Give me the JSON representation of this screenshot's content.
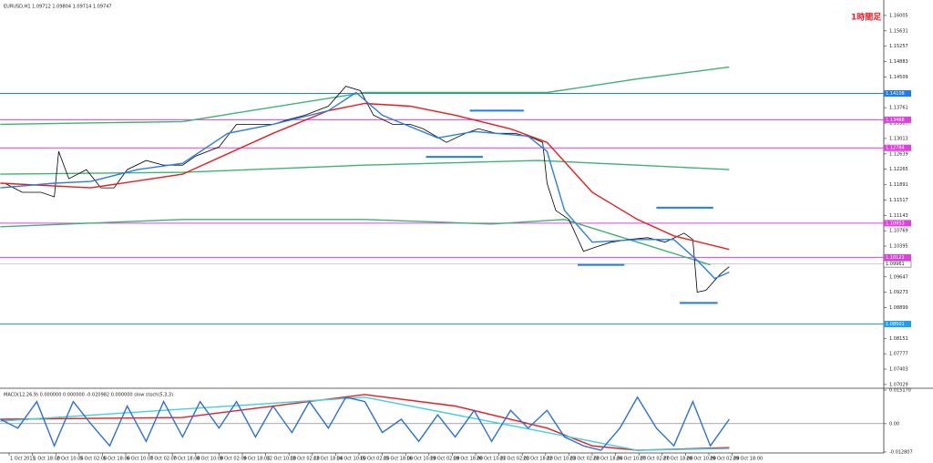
{
  "chart_data": [
    {
      "type": "line",
      "title": "EURUSD,H1 1.09712 1.09804 1.09714 1.09747",
      "annotation": "1時間足",
      "xlim": [
        -6.25,
        600
      ],
      "ylim": [
        1.0696,
        1.16336
      ],
      "yticks": [
        1.16005,
        1.15631,
        1.15257,
        1.14883,
        1.14509,
        1.14135,
        1.13761,
        1.13387,
        1.13013,
        1.12639,
        1.12265,
        1.11891,
        1.11517,
        1.11143,
        1.10769,
        1.10395,
        1.10021,
        1.09647,
        1.09273,
        1.08899,
        1.08525,
        1.08151,
        1.07777,
        1.07403,
        1.07029
      ],
      "levels": [
        {
          "value": 1.14108,
          "color": "#1e7bf0"
        },
        {
          "value": 1.13468,
          "color": "#e040e0"
        },
        {
          "value": 1.12784,
          "color": "#e040e0"
        },
        {
          "value": 1.10953,
          "color": "#e040e0"
        },
        {
          "value": 1.10121,
          "color": "#e040e0"
        },
        {
          "value": 1.08501,
          "color": "#1ea0f0"
        }
      ],
      "last_price": 1.09961,
      "segments": [
        {
          "x": [
            316,
            353
          ],
          "value": 1.13689,
          "color": "#1e7bf0"
        },
        {
          "x": [
            286,
            325
          ],
          "value": 1.12564,
          "color": "#1e7bf0"
        },
        {
          "x": [
            444,
            483
          ],
          "value": 1.11328,
          "color": "#1e7bf0"
        },
        {
          "x": [
            390,
            422
          ],
          "value": 1.09939,
          "color": "#1e7bf0"
        },
        {
          "x": [
            460,
            486
          ],
          "value": 1.09012,
          "color": "#1e7bf0"
        }
      ],
      "series": [
        {
          "color": "#3cb371",
          "x": [
            -6,
            119,
            244,
            369,
            431,
            494
          ],
          "values": [
            1.13358,
            1.13424,
            1.1413,
            1.1413,
            1.14461,
            1.14748
          ]
        },
        {
          "color": "#3cb371",
          "x": [
            -6,
            119,
            244,
            363,
            431,
            494
          ],
          "values": [
            1.12145,
            1.12189,
            1.12365,
            1.12476,
            1.12365,
            1.12255
          ]
        },
        {
          "color": "#3cb371",
          "x": [
            -6,
            119,
            244,
            331,
            381,
            431,
            481
          ],
          "values": [
            1.10865,
            1.11042,
            1.11042,
            1.10931,
            1.11042,
            1.1049,
            1.09938
          ]
        },
        {
          "color": "#000000",
          "x": [
            -3,
            9,
            22,
            31,
            34,
            41,
            53,
            63,
            72,
            81,
            94,
            106,
            119,
            128,
            144,
            156,
            169,
            181,
            191,
            203,
            219,
            231,
            241,
            250,
            263,
            275,
            284,
            300,
            313,
            322,
            334,
            347,
            359,
            366,
            369,
            375,
            384,
            394,
            403,
            413,
            425,
            438,
            450,
            463,
            469,
            472,
            478,
            488,
            494
          ],
          "values": [
            1.11924,
            1.11703,
            1.11703,
            1.11593,
            1.12696,
            1.12034,
            1.12255,
            1.11813,
            1.11813,
            1.12255,
            1.12476,
            1.12365,
            1.12365,
            1.12586,
            1.12806,
            1.13358,
            1.13358,
            1.13358,
            1.13468,
            1.13578,
            1.13799,
            1.14284,
            1.14174,
            1.13578,
            1.13358,
            1.13358,
            1.13248,
            1.12917,
            1.13137,
            1.13248,
            1.13137,
            1.13137,
            1.13027,
            1.12917,
            1.11924,
            1.11262,
            1.11042,
            1.10269,
            1.1038,
            1.1049,
            1.10556,
            1.106,
            1.1049,
            1.10711,
            1.10556,
            1.09277,
            1.09321,
            1.09718,
            1.09894
          ]
        },
        {
          "color": "#e81c1c",
          "x": [
            -6,
            56,
            119,
            181,
            219,
            244,
            275,
            306,
            344,
            369,
            400,
            431,
            456,
            494
          ],
          "values": [
            1.11924,
            1.11813,
            1.12145,
            1.13137,
            1.13689,
            1.13865,
            1.13799,
            1.13578,
            1.13247,
            1.12917,
            1.11703,
            1.11042,
            1.10645,
            1.10314
          ]
        },
        {
          "color": "#2a7de1",
          "x": [
            -6,
            31,
            56,
            88,
            119,
            150,
            181,
            219,
            238,
            256,
            294,
            319,
            356,
            369,
            381,
            400,
            431,
            456,
            472,
            484,
            494
          ],
          "values": [
            1.11813,
            1.11924,
            1.11968,
            1.12255,
            1.12409,
            1.13137,
            1.13358,
            1.13689,
            1.1413,
            1.13578,
            1.13027,
            1.13181,
            1.13071,
            1.12696,
            1.11262,
            1.1049,
            1.10556,
            1.10556,
            1.10049,
            1.09608,
            1.09762
          ]
        }
      ]
    },
    {
      "type": "line",
      "title": "MACD(12,26,9) 0.000000 0.000000 -0.020982 0.000000 slow stoch(5,3,3)",
      "xlim": [
        -6.25,
        600
      ],
      "ylim": [
        -0.01283,
        0.01517
      ],
      "yticks": [
        {
          "value": 0.01517,
          "label": "0.015170"
        },
        {
          "value": 0,
          "label": "0.00"
        },
        {
          "value": -0.012807,
          "label": "-0.012807"
        }
      ],
      "xticks": [
        {
          "value": 0,
          "label": "1 Oct 2015"
        },
        {
          "value": 16,
          "label": "1 Oct 18:00"
        },
        {
          "value": 32,
          "label": "2 Oct 10:00"
        },
        {
          "value": 48,
          "label": "5 Oct 02:00"
        },
        {
          "value": 64,
          "label": "5 Oct 18:00"
        },
        {
          "value": 80,
          "label": "6 Oct 10:00"
        },
        {
          "value": 96,
          "label": "7 Oct 02:00"
        },
        {
          "value": 112,
          "label": "7 Oct 18:00"
        },
        {
          "value": 128,
          "label": "8 Oct 10:00"
        },
        {
          "value": 144,
          "label": "9 Oct 02:00"
        },
        {
          "value": 160,
          "label": "9 Oct 18:00"
        },
        {
          "value": 176,
          "label": "12 Oct 10:00"
        },
        {
          "value": 192,
          "label": "13 Oct 02:00"
        },
        {
          "value": 208,
          "label": "13 Oct 18:00"
        },
        {
          "value": 224,
          "label": "14 Oct 10:00"
        },
        {
          "value": 240,
          "label": "15 Oct 02:00"
        },
        {
          "value": 256,
          "label": "15 Oct 18:00"
        },
        {
          "value": 272,
          "label": "16 Oct 10:00"
        },
        {
          "value": 288,
          "label": "19 Oct 02:00"
        },
        {
          "value": 304,
          "label": "19 Oct 18:00"
        },
        {
          "value": 320,
          "label": "20 Oct 10:00"
        },
        {
          "value": 336,
          "label": "21 Oct 02:00"
        },
        {
          "value": 352,
          "label": "21 Oct 18:00"
        },
        {
          "value": 368,
          "label": "22 Oct 10:00"
        },
        {
          "value": 384,
          "label": "23 Oct 02:00"
        },
        {
          "value": 400,
          "label": "23 Oct 18:00"
        },
        {
          "value": 416,
          "label": "26 Oct 10:00"
        },
        {
          "value": 432,
          "label": "27 Oct 02:00"
        },
        {
          "value": 448,
          "label": "27 Oct 18:00"
        },
        {
          "value": 464,
          "label": "28 Oct 10:00"
        },
        {
          "value": 480,
          "label": "29 Oct 02:00"
        },
        {
          "value": 496,
          "label": "29 Oct 18:00"
        }
      ],
      "series": [
        {
          "color": "#e81c1c",
          "x": [
            -6,
            119,
            244,
            306,
            369,
            400,
            431,
            494
          ],
          "values": [
            0.00198,
            0.00278,
            0.01317,
            0.00798,
            -0.00202,
            -0.01001,
            -0.01201,
            -0.01081
          ]
        },
        {
          "color": "#40d0e0",
          "x": [
            -6,
            244,
            369,
            431,
            494
          ],
          "values": [
            0.00118,
            0.01197,
            -0.00402,
            -0.01201,
            -0.01121
          ]
        },
        {
          "color": "#2a6fdb",
          "x": [
            -6,
            6,
            19,
            31,
            44,
            56,
            69,
            81,
            94,
            106,
            119,
            131,
            144,
            156,
            169,
            181,
            194,
            206,
            219,
            231,
            244,
            256,
            269,
            281,
            294,
            306,
            319,
            331,
            344,
            356,
            369,
            381,
            394,
            406,
            419,
            431,
            444,
            456,
            469,
            481,
            494
          ],
          "values": [
            0.00198,
            -0.00202,
            0.00997,
            -0.01001,
            0.00997,
            -2e-05,
            -0.01001,
            0.00798,
            -0.00801,
            0.00997,
            -0.00601,
            0.00997,
            -0.00202,
            0.00997,
            -0.00601,
            0.00798,
            -0.00402,
            0.00997,
            -0.00202,
            0.01197,
            0.00997,
            -0.00402,
            0.00198,
            -0.00801,
            0.00398,
            -0.00601,
            0.00598,
            -0.00801,
            0.00598,
            -0.00202,
            0.00598,
            -0.00601,
            -0.01001,
            -0.01201,
            -0.00202,
            0.01197,
            -0.00202,
            -0.01001,
            0.00997,
            -0.01001,
            0.00198
          ]
        }
      ]
    }
  ]
}
